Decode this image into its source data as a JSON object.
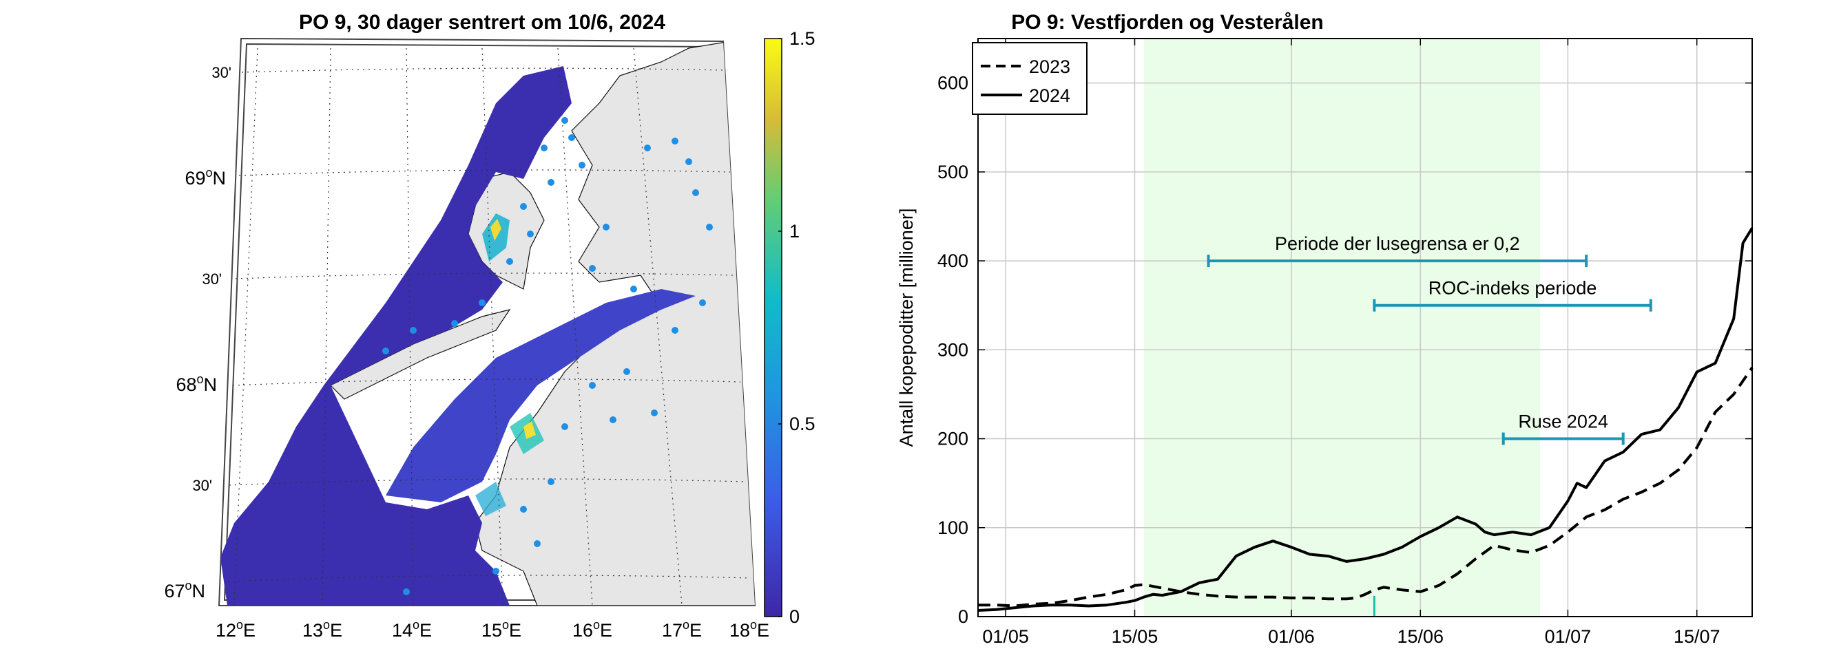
{
  "chart_data": [
    {
      "type": "heatmap",
      "title": "PO 9, 30 dager sentrert om 10/6, 2024",
      "colorbar": {
        "ticks": [
          "0",
          "0.5",
          "1",
          "1.5"
        ],
        "range": [
          0,
          1.5
        ]
      },
      "lat_labels": [
        {
          "deg": "67",
          "suf": "N"
        },
        {
          "deg": "",
          "min": "30'"
        },
        {
          "deg": "68",
          "suf": "N"
        },
        {
          "deg": "",
          "min": "30'"
        },
        {
          "deg": "69",
          "suf": "N"
        },
        {
          "deg": "",
          "min": "30'"
        }
      ],
      "lon_labels": [
        "12",
        "13",
        "14",
        "15",
        "16",
        "17",
        "18"
      ],
      "lon_suffix": "E",
      "colors": {
        "low": "#3b2fb0",
        "mid": "#16b6cf",
        "high": "#f7e31f",
        "land": "#e6e6e6",
        "sites": "#1f8fe6"
      }
    },
    {
      "type": "line",
      "title": "PO 9: Vestfjorden og Vesterålen",
      "ylabel": "Antall kopepoditter [millioner]",
      "xlabel": "",
      "ylim": [
        0,
        650
      ],
      "xlim_days": [
        0,
        84
      ],
      "x_ticks": [
        {
          "label": "01/05",
          "day": 3
        },
        {
          "label": "15/05",
          "day": 17
        },
        {
          "label": "01/06",
          "day": 34
        },
        {
          "label": "15/06",
          "day": 48
        },
        {
          "label": "01/07",
          "day": 64
        },
        {
          "label": "15/07",
          "day": 78
        }
      ],
      "y_ticks": [
        0,
        100,
        200,
        300,
        400,
        500,
        600
      ],
      "shaded_period_days": [
        18,
        61
      ],
      "legend": [
        "2023",
        "2024"
      ],
      "series": [
        {
          "name": "2023",
          "style": "dashed",
          "x": [
            0,
            2,
            4,
            6,
            8,
            10,
            12,
            14,
            16,
            17,
            18,
            20,
            22,
            24,
            26,
            28,
            30,
            32,
            34,
            36,
            38,
            40,
            41,
            42,
            43,
            44,
            46,
            48,
            50,
            52,
            54,
            56,
            58,
            60,
            62,
            64,
            66,
            68,
            70,
            72,
            74,
            76,
            78,
            80,
            82,
            84
          ],
          "y": [
            13,
            13,
            12,
            14,
            15,
            18,
            22,
            25,
            30,
            35,
            36,
            32,
            28,
            25,
            23,
            22,
            22,
            22,
            21,
            21,
            20,
            20,
            21,
            25,
            30,
            33,
            30,
            28,
            35,
            48,
            65,
            80,
            75,
            72,
            80,
            95,
            112,
            120,
            132,
            140,
            150,
            165,
            190,
            230,
            250,
            280
          ]
        },
        {
          "name": "2024",
          "style": "solid",
          "x": [
            0,
            2,
            4,
            6,
            8,
            10,
            12,
            14,
            16,
            17,
            18,
            19,
            20,
            22,
            24,
            26,
            28,
            30,
            32,
            34,
            36,
            38,
            40,
            42,
            44,
            46,
            48,
            50,
            52,
            54,
            55,
            56,
            58,
            60,
            62,
            64,
            65,
            66,
            67,
            68,
            70,
            72,
            74,
            76,
            78,
            80,
            82,
            83,
            84
          ],
          "y": [
            7,
            8,
            10,
            12,
            13,
            13,
            12,
            13,
            16,
            18,
            22,
            25,
            24,
            28,
            38,
            42,
            68,
            78,
            85,
            78,
            70,
            68,
            62,
            65,
            70,
            78,
            90,
            100,
            112,
            104,
            95,
            92,
            95,
            92,
            100,
            130,
            150,
            145,
            160,
            175,
            185,
            205,
            210,
            235,
            275,
            285,
            335,
            420,
            437
          ]
        }
      ],
      "intervals": [
        {
          "label": "Periode der lusegrensa er 0,2",
          "start": 25,
          "end": 66,
          "y": 400
        },
        {
          "label": "ROC-indeks periode",
          "start": 43,
          "end": 73,
          "y": 350
        },
        {
          "label": "Ruse 2024",
          "start": 57,
          "end": 70,
          "y": 200
        }
      ],
      "marker_day": 43,
      "colors": {
        "shade": "#eafde8",
        "interval": "#1d96b6",
        "marker": "#17c0a8",
        "line": "#000000"
      }
    }
  ]
}
